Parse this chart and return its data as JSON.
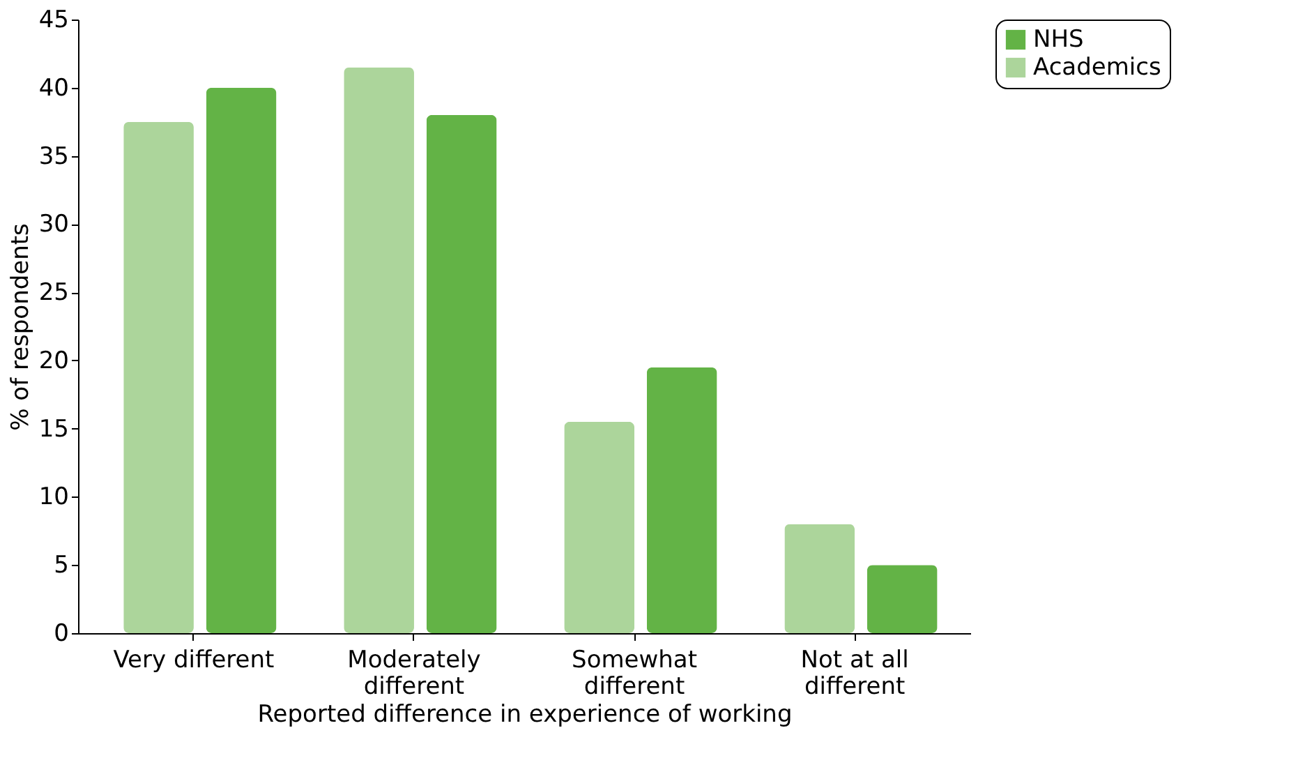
{
  "chart_data": {
    "type": "bar",
    "xlabel": "Reported difference in experience of working",
    "ylabel": "% of respondents",
    "categories": [
      "Very different",
      "Moderately different",
      "Somewhat different",
      "Not at all different"
    ],
    "series": [
      {
        "name": "Academics",
        "color": "#acd59b",
        "values": [
          37.5,
          41.5,
          15.5,
          8
        ]
      },
      {
        "name": "NHS",
        "color": "#63b346",
        "values": [
          40,
          38,
          19.5,
          5
        ]
      }
    ],
    "ylim": [
      0,
      45
    ],
    "yticks": [
      0,
      5,
      10,
      15,
      20,
      25,
      30,
      35,
      40,
      45
    ],
    "grid": false,
    "legend": "right"
  }
}
